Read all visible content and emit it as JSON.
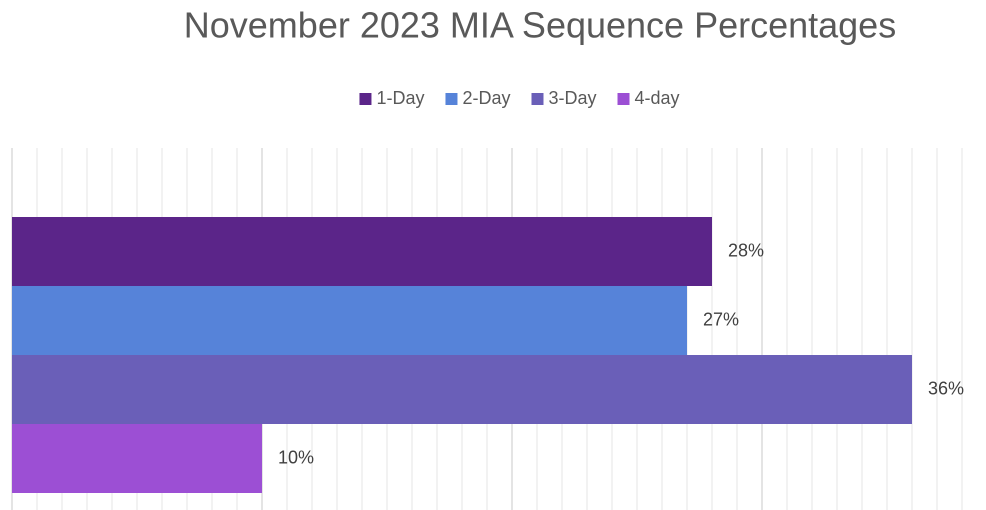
{
  "chart_data": {
    "type": "bar",
    "orientation": "horizontal",
    "title": "November 2023 MIA Sequence Percentages",
    "categories": [
      null
    ],
    "series": [
      {
        "name": "1-Day",
        "color": "#5b2589",
        "values": [
          28
        ],
        "value_labels": [
          "28%"
        ]
      },
      {
        "name": "2-Day",
        "color": "#5683d9",
        "values": [
          27
        ],
        "value_labels": [
          "27%"
        ]
      },
      {
        "name": "3-Day",
        "color": "#6a5fb8",
        "values": [
          36
        ],
        "value_labels": [
          "36%"
        ]
      },
      {
        "name": "4-day",
        "color": "#9c4fd4",
        "values": [
          10
        ],
        "value_labels": [
          "10%"
        ]
      }
    ],
    "xlim": [
      0,
      38
    ],
    "xticks": [
      0,
      1,
      2,
      3,
      4,
      5,
      6,
      7,
      8,
      9,
      10,
      11,
      12,
      13,
      14,
      15,
      16,
      17,
      18,
      19,
      20,
      21,
      22,
      23,
      24,
      25,
      26,
      27,
      28,
      29,
      30,
      31,
      32,
      33,
      34,
      35,
      36,
      37,
      38
    ],
    "grid": true,
    "legend": "top"
  }
}
